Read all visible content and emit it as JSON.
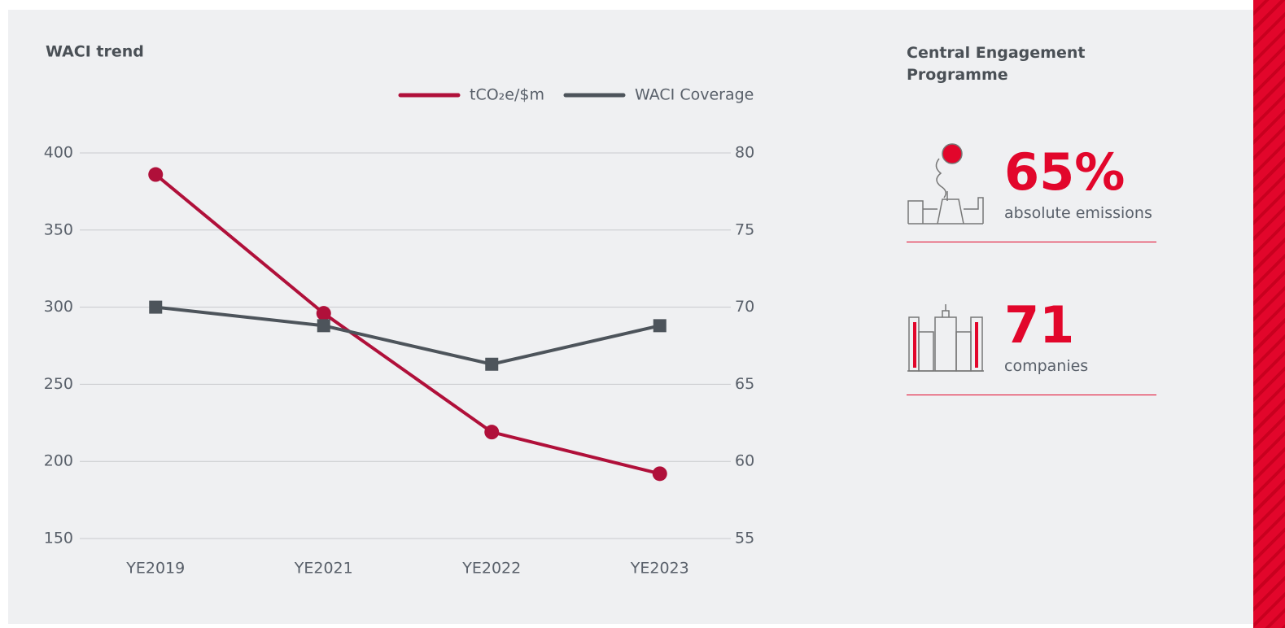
{
  "chart_data": {
    "type": "line",
    "title": "WACI trend",
    "categories": [
      "YE2019",
      "YE2021",
      "YE2022",
      "YE2023"
    ],
    "series": [
      {
        "name": "tCO₂e/$m",
        "color": "#b0103a",
        "marker": "circle",
        "values": [
          386,
          296,
          219,
          192
        ]
      },
      {
        "name": "WACI Coverage",
        "color": "#4d545b",
        "marker": "square",
        "axis": "y2",
        "values": [
          70,
          68.8,
          66.3,
          68.8
        ]
      }
    ],
    "ylim": [
      150,
      400
    ],
    "yticks": [
      150,
      200,
      250,
      300,
      350,
      400
    ],
    "y2lim": [
      55,
      80
    ],
    "y2ticks": [
      55,
      60,
      65,
      70,
      75,
      80
    ],
    "grid": true,
    "legend": "top-right"
  },
  "engagement": {
    "title": "Central Engagement Programme",
    "stats": [
      {
        "value": "65%",
        "label": "absolute emissions"
      },
      {
        "value": "71",
        "label": "companies"
      }
    ]
  }
}
